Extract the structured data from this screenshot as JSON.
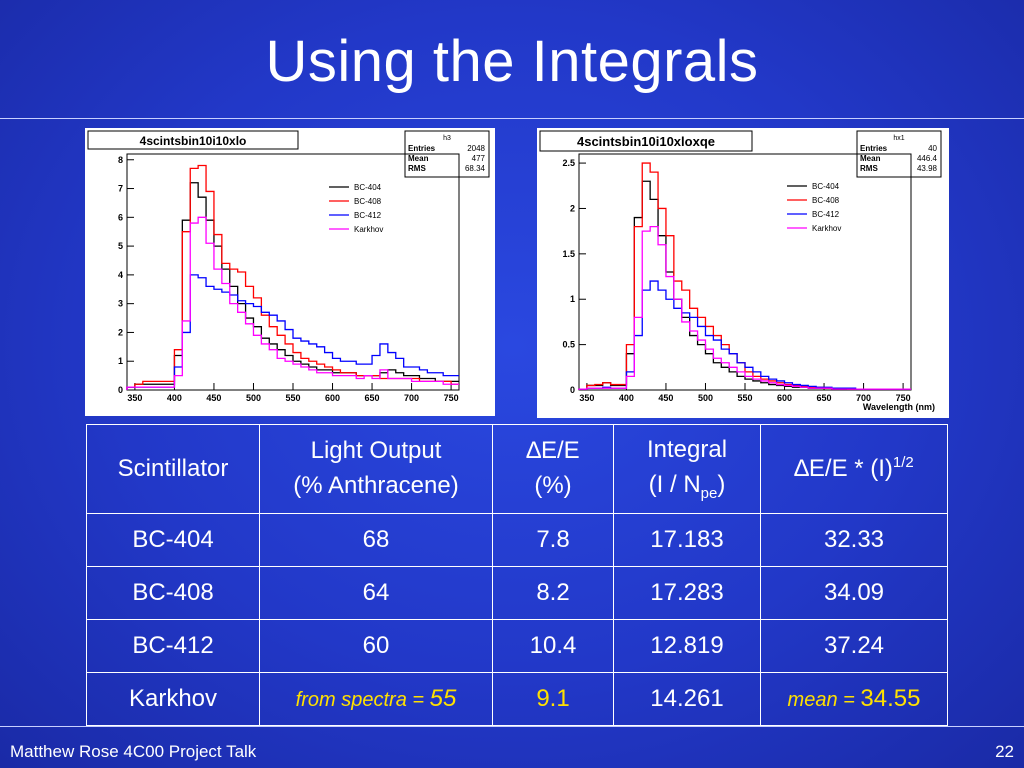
{
  "slide": {
    "title": "Using the Integrals",
    "footer_left": "Matthew Rose 4C00 Project Talk",
    "page_number": "22"
  },
  "plot1": {
    "title": "4scintsbin10i10xlo",
    "stats": {
      "name": "h3",
      "entries_label": "Entries",
      "entries": "2048",
      "mean_label": "Mean",
      "mean": "477",
      "rms_label": "RMS",
      "rms": "68.34"
    },
    "x_ticks": [
      "350",
      "400",
      "450",
      "500",
      "550",
      "600",
      "650",
      "700",
      "750"
    ],
    "y_ticks": [
      "0",
      "1",
      "2",
      "3",
      "4",
      "5",
      "6",
      "7",
      "8"
    ],
    "legend": [
      "BC-404",
      "BC-408",
      "BC-412",
      "Karkhov"
    ]
  },
  "plot2": {
    "title": "4scintsbin10i10xloxqe",
    "stats": {
      "name": "hx1",
      "entries_label": "Entries",
      "entries": "40",
      "mean_label": "Mean",
      "mean": "446.4",
      "rms_label": "RMS",
      "rms": "43.98"
    },
    "x_ticks": [
      "350",
      "400",
      "450",
      "500",
      "550",
      "600",
      "650",
      "700",
      "750"
    ],
    "y_ticks": [
      "0",
      "0.5",
      "1",
      "1.5",
      "2",
      "2.5"
    ],
    "xlabel": "Wavelength (nm)",
    "legend": [
      "BC-404",
      "BC-408",
      "BC-412",
      "Karkhov"
    ]
  },
  "colors": {
    "BC-404": "#000000",
    "BC-408": "#ff0000",
    "BC-412": "#0000ff",
    "Karkhov": "#ff00ff"
  },
  "chart_data": [
    {
      "type": "line",
      "title": "4scintsbin10i10xlo",
      "xlim": [
        340,
        760
      ],
      "ylim": [
        0,
        8.2
      ],
      "x": [
        340,
        350,
        360,
        370,
        380,
        390,
        400,
        410,
        420,
        430,
        440,
        450,
        460,
        470,
        480,
        490,
        500,
        510,
        520,
        530,
        540,
        550,
        560,
        570,
        580,
        590,
        600,
        610,
        620,
        630,
        640,
        650,
        660,
        670,
        680,
        690,
        700,
        710,
        720,
        730,
        740,
        750
      ],
      "series": [
        {
          "name": "BC-404",
          "values": [
            0.1,
            0.2,
            0.2,
            0.2,
            0.2,
            0.2,
            1.2,
            5.9,
            7.2,
            6.7,
            5.9,
            5.0,
            4.2,
            3.6,
            3.0,
            2.5,
            2.2,
            1.8,
            1.6,
            1.4,
            1.2,
            1.0,
            0.9,
            0.8,
            0.7,
            0.7,
            0.6,
            0.6,
            0.6,
            0.5,
            0.5,
            0.5,
            0.6,
            0.7,
            0.6,
            0.5,
            0.5,
            0.4,
            0.4,
            0.3,
            0.3,
            0.3
          ]
        },
        {
          "name": "BC-408",
          "values": [
            0.1,
            0.2,
            0.3,
            0.3,
            0.3,
            0.3,
            1.4,
            5.5,
            7.7,
            7.8,
            6.9,
            5.4,
            4.4,
            4.2,
            4.1,
            3.6,
            3.2,
            2.6,
            2.2,
            1.9,
            1.6,
            1.3,
            1.1,
            1.0,
            0.9,
            0.8,
            0.7,
            0.6,
            0.6,
            0.5,
            0.5,
            0.5,
            0.4,
            0.4,
            0.4,
            0.4,
            0.4,
            0.3,
            0.3,
            0.3,
            0.3,
            0.2
          ]
        },
        {
          "name": "BC-412",
          "values": [
            0.1,
            0.1,
            0.1,
            0.1,
            0.1,
            0.1,
            0.8,
            2.0,
            4.0,
            3.9,
            3.6,
            3.5,
            3.4,
            3.3,
            3.1,
            3.0,
            2.9,
            2.7,
            2.6,
            2.4,
            2.1,
            1.8,
            1.7,
            1.6,
            1.5,
            1.3,
            1.1,
            1.0,
            1.0,
            0.9,
            0.9,
            1.2,
            1.6,
            1.3,
            1.1,
            0.8,
            0.8,
            0.7,
            0.6,
            0.6,
            0.5,
            0.5
          ]
        },
        {
          "name": "Karkhov",
          "values": [
            0.1,
            0.1,
            0.1,
            0.1,
            0.1,
            0.1,
            0.5,
            2.4,
            5.8,
            6.0,
            5.1,
            4.2,
            3.7,
            3.0,
            2.7,
            2.3,
            1.9,
            1.6,
            1.4,
            1.1,
            1.0,
            0.9,
            0.8,
            0.7,
            0.6,
            0.6,
            0.5,
            0.5,
            0.5,
            0.4,
            0.5,
            0.4,
            0.7,
            0.4,
            0.4,
            0.4,
            0.3,
            0.3,
            0.3,
            0.3,
            0.2,
            0.2
          ]
        }
      ]
    },
    {
      "type": "line",
      "title": "4scintsbin10i10xloxqe",
      "xlabel": "Wavelength (nm)",
      "xlim": [
        340,
        760
      ],
      "ylim": [
        0,
        2.6
      ],
      "x": [
        340,
        350,
        360,
        370,
        380,
        390,
        400,
        410,
        420,
        430,
        440,
        450,
        460,
        470,
        480,
        490,
        500,
        510,
        520,
        530,
        540,
        550,
        560,
        570,
        580,
        590,
        600,
        610,
        620,
        630,
        640,
        650,
        660,
        670,
        680,
        690,
        700,
        710,
        720,
        730,
        740,
        750
      ],
      "series": [
        {
          "name": "BC-404",
          "values": [
            0.01,
            0.05,
            0.05,
            0.08,
            0.05,
            0.05,
            0.4,
            1.9,
            2.3,
            2.1,
            1.7,
            1.3,
            1.0,
            0.8,
            0.6,
            0.5,
            0.4,
            0.3,
            0.25,
            0.2,
            0.15,
            0.12,
            0.1,
            0.08,
            0.06,
            0.05,
            0.04,
            0.03,
            0.03,
            0.02,
            0.02,
            0.02,
            0.01,
            0.01,
            0.01,
            0.01,
            0.01,
            0.01,
            0.01,
            0.01,
            0.01,
            0.01
          ]
        },
        {
          "name": "BC-408",
          "values": [
            0.01,
            0.05,
            0.06,
            0.08,
            0.06,
            0.06,
            0.5,
            1.8,
            2.5,
            2.4,
            2.0,
            1.7,
            1.2,
            1.1,
            0.9,
            0.8,
            0.7,
            0.6,
            0.5,
            0.4,
            0.3,
            0.2,
            0.15,
            0.12,
            0.1,
            0.08,
            0.06,
            0.05,
            0.04,
            0.03,
            0.03,
            0.02,
            0.02,
            0.02,
            0.01,
            0.01,
            0.01,
            0.01,
            0.01,
            0.01,
            0.01,
            0.01
          ]
        },
        {
          "name": "BC-412",
          "values": [
            0.01,
            0.02,
            0.02,
            0.03,
            0.02,
            0.02,
            0.2,
            0.6,
            1.1,
            1.2,
            1.1,
            1.0,
            0.9,
            0.85,
            0.8,
            0.7,
            0.6,
            0.55,
            0.45,
            0.4,
            0.3,
            0.25,
            0.2,
            0.15,
            0.12,
            0.1,
            0.08,
            0.06,
            0.05,
            0.04,
            0.03,
            0.03,
            0.02,
            0.02,
            0.02,
            0.01,
            0.01,
            0.01,
            0.01,
            0.01,
            0.01,
            0.01
          ]
        },
        {
          "name": "Karkhov",
          "values": [
            0.01,
            0.02,
            0.02,
            0.02,
            0.02,
            0.02,
            0.15,
            0.8,
            1.75,
            1.8,
            1.6,
            1.25,
            1.0,
            0.75,
            0.65,
            0.55,
            0.45,
            0.35,
            0.3,
            0.25,
            0.2,
            0.15,
            0.12,
            0.1,
            0.08,
            0.06,
            0.05,
            0.04,
            0.03,
            0.02,
            0.02,
            0.02,
            0.01,
            0.01,
            0.01,
            0.01,
            0.01,
            0.01,
            0.01,
            0.01,
            0.01,
            0.01
          ]
        }
      ]
    }
  ],
  "table": {
    "headers": {
      "scintillator": "Scintillator",
      "light_output_line1": "Light Output",
      "light_output_line2": "(% Anthracene)",
      "de_e": "∆E/E",
      "de_e_unit": "(%)",
      "integral_line1": "Integral",
      "integral_line2_pre": "(I / N",
      "integral_line2_sub": "pe",
      "integral_line2_post": ")",
      "product_pre": "∆E/E * (I)",
      "product_sup": "1/2"
    },
    "rows": [
      {
        "name": "BC-404",
        "light": "68",
        "de": "7.8",
        "integral": "17.183",
        "product": "32.33"
      },
      {
        "name": "BC-408",
        "light": "64",
        "de": "8.2",
        "integral": "17.283",
        "product": "34.09"
      },
      {
        "name": "BC-412",
        "light": "60",
        "de": "10.4",
        "integral": "12.819",
        "product": "37.24"
      }
    ],
    "last_row": {
      "name": "Karkhov",
      "light_prefix": "from spectra = ",
      "light_value": "55",
      "de": "9.1",
      "integral": "14.261",
      "product_prefix": "mean = ",
      "product_value": "34.55"
    }
  }
}
